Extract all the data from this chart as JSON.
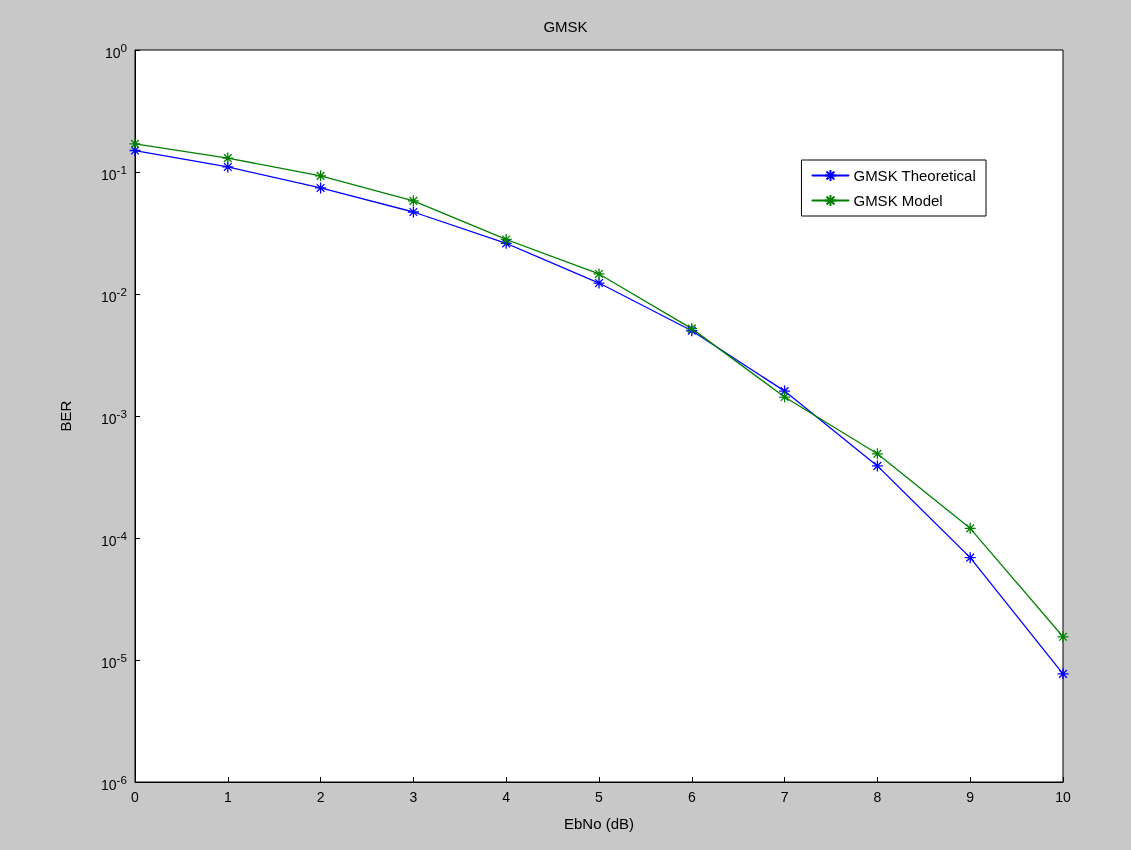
{
  "chart_data": {
    "type": "line",
    "title": "GMSK",
    "xlabel": "EbNo (dB)",
    "ylabel": "BER",
    "x": [
      0,
      1,
      2,
      3,
      4,
      5,
      6,
      7,
      8,
      9,
      10
    ],
    "series": [
      {
        "name": "GMSK Theoretical",
        "color": "#0000ff",
        "values": [
          0.15,
          0.11,
          0.074,
          0.047,
          0.026,
          0.0123,
          0.005,
          0.0016,
          0.00039,
          6.9e-05,
          7.7e-06
        ]
      },
      {
        "name": "GMSK Model",
        "color": "#008000",
        "values": [
          0.17,
          0.13,
          0.093,
          0.058,
          0.028,
          0.0146,
          0.0052,
          0.00143,
          0.00049,
          0.00012,
          1.55e-05
        ]
      }
    ],
    "xlim": [
      0,
      10
    ],
    "xticks": [
      0,
      1,
      2,
      3,
      4,
      5,
      6,
      7,
      8,
      9,
      10
    ],
    "ylim": [
      1e-06,
      1
    ],
    "yticks": [
      {
        "value": 1e-06,
        "label": "10$^{-6}$"
      },
      {
        "value": 1e-05,
        "label": "10$^{-5}$"
      },
      {
        "value": 0.0001,
        "label": "10$^{-4}$"
      },
      {
        "value": 0.001,
        "label": "10$^{-3}$"
      },
      {
        "value": 0.01,
        "label": "10$^{-2}$"
      },
      {
        "value": 0.1,
        "label": "10$^{-1}$"
      },
      {
        "value": 1,
        "label": "10$^{0}$"
      }
    ],
    "log": "y",
    "grid": false,
    "legend": "top right",
    "marker": "cross",
    "line_style": "solid"
  }
}
